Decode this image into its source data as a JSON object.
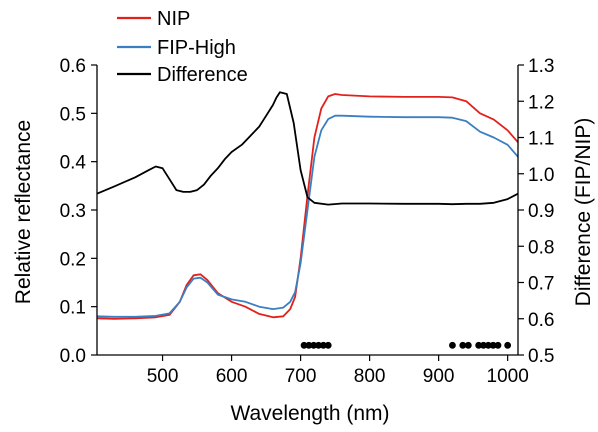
{
  "chart_data": {
    "type": "line",
    "xlabel": "Wavelength (nm)",
    "ylabel": "Relative reflectance",
    "y2label": "Difference (FIP/NIP)",
    "xlim": [
      405,
      1015
    ],
    "ylim": [
      0.0,
      0.6
    ],
    "y2lim": [
      0.5,
      1.3
    ],
    "x_ticks": [
      500,
      600,
      700,
      800,
      900,
      1000
    ],
    "y_ticks": [
      0.0,
      0.1,
      0.2,
      0.3,
      0.4,
      0.5,
      0.6
    ],
    "y2_ticks": [
      0.5,
      0.6,
      0.7,
      0.8,
      0.9,
      1.0,
      1.1,
      1.2,
      1.3
    ],
    "x_tick_labels": [
      "500",
      "600",
      "700",
      "800",
      "900",
      "1000"
    ],
    "y_tick_labels": [
      "0.0",
      "0.1",
      "0.2",
      "0.3",
      "0.4",
      "0.5",
      "0.6"
    ],
    "y2_tick_labels": [
      "0.5",
      "0.6",
      "0.7",
      "0.8",
      "0.9",
      "1.0",
      "1.1",
      "1.2",
      "1.3"
    ],
    "legend_placement": "top-left",
    "grid": false,
    "series": [
      {
        "name": "NIP",
        "axis": "left",
        "color": "#e3211c",
        "x": [
          405,
          430,
          460,
          490,
          510,
          525,
          535,
          545,
          555,
          565,
          580,
          600,
          620,
          640,
          660,
          675,
          685,
          692,
          700,
          710,
          720,
          730,
          740,
          750,
          760,
          800,
          850,
          900,
          920,
          940,
          960,
          980,
          1000,
          1015
        ],
        "y": [
          0.076,
          0.075,
          0.076,
          0.078,
          0.083,
          0.11,
          0.145,
          0.165,
          0.167,
          0.155,
          0.128,
          0.11,
          0.1,
          0.085,
          0.078,
          0.08,
          0.095,
          0.12,
          0.2,
          0.33,
          0.45,
          0.51,
          0.535,
          0.54,
          0.538,
          0.535,
          0.534,
          0.534,
          0.533,
          0.525,
          0.5,
          0.487,
          0.465,
          0.44
        ]
      },
      {
        "name": "FIP-High",
        "axis": "left",
        "color": "#3a7fc1",
        "x": [
          405,
          430,
          460,
          490,
          510,
          525,
          535,
          545,
          555,
          565,
          580,
          600,
          620,
          640,
          660,
          675,
          685,
          692,
          700,
          710,
          720,
          730,
          740,
          750,
          760,
          800,
          850,
          900,
          920,
          940,
          960,
          980,
          1000,
          1015
        ],
        "y": [
          0.08,
          0.079,
          0.079,
          0.081,
          0.086,
          0.11,
          0.14,
          0.158,
          0.16,
          0.15,
          0.125,
          0.115,
          0.11,
          0.1,
          0.095,
          0.098,
          0.11,
          0.13,
          0.19,
          0.3,
          0.41,
          0.465,
          0.488,
          0.495,
          0.495,
          0.493,
          0.492,
          0.492,
          0.491,
          0.484,
          0.462,
          0.45,
          0.435,
          0.41
        ]
      },
      {
        "name": "Difference",
        "axis": "right",
        "color": "#000000",
        "x": [
          405,
          430,
          460,
          480,
          490,
          500,
          510,
          520,
          530,
          540,
          550,
          560,
          570,
          580,
          590,
          600,
          615,
          630,
          640,
          650,
          660,
          665,
          670,
          680,
          690,
          700,
          710,
          720,
          740,
          760,
          800,
          850,
          900,
          920,
          940,
          960,
          980,
          1000,
          1015
        ],
        "y": [
          0.945,
          0.965,
          0.99,
          1.01,
          1.02,
          1.015,
          0.985,
          0.955,
          0.95,
          0.95,
          0.955,
          0.97,
          0.995,
          1.015,
          1.04,
          1.06,
          1.08,
          1.11,
          1.13,
          1.16,
          1.19,
          1.21,
          1.225,
          1.22,
          1.14,
          1.01,
          0.935,
          0.92,
          0.915,
          0.918,
          0.918,
          0.917,
          0.917,
          0.916,
          0.917,
          0.917,
          0.92,
          0.93,
          0.945
        ]
      }
    ],
    "significance_markers": {
      "color": "#000000",
      "y": 0.02,
      "x": [
        705,
        712,
        719,
        726,
        733,
        740,
        920,
        935,
        943,
        958,
        965,
        972,
        979,
        986,
        1000
      ]
    }
  }
}
